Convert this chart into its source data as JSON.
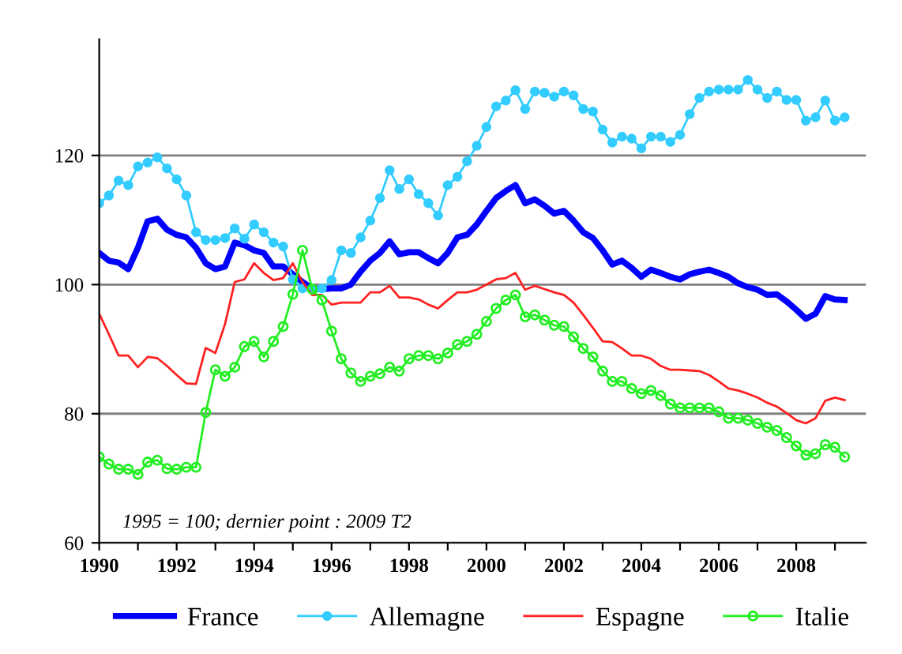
{
  "chart_data": {
    "type": "line",
    "annotations": [
      "1995 = 100; dernier point : 2009 T2"
    ],
    "x": [
      1990,
      1990.25,
      1990.5,
      1990.75,
      1991,
      1991.25,
      1991.5,
      1991.75,
      1992,
      1992.25,
      1992.5,
      1992.75,
      1993,
      1993.25,
      1993.5,
      1993.75,
      1994,
      1994.25,
      1994.5,
      1994.75,
      1995,
      1995.25,
      1995.5,
      1995.75,
      1996,
      1996.25,
      1996.5,
      1996.75,
      1997,
      1997.25,
      1997.5,
      1997.75,
      1998,
      1998.25,
      1998.5,
      1998.75,
      1999,
      1999.25,
      1999.5,
      1999.75,
      2000,
      2000.25,
      2000.5,
      2000.75,
      2001,
      2001.25,
      2001.5,
      2001.75,
      2002,
      2002.25,
      2002.5,
      2002.75,
      2003,
      2003.25,
      2003.5,
      2003.75,
      2004,
      2004.25,
      2004.5,
      2004.75,
      2005,
      2005.25,
      2005.5,
      2005.75,
      2006,
      2006.25,
      2006.5,
      2006.75,
      2007,
      2007.25,
      2007.5,
      2007.75,
      2008,
      2008.25,
      2008.5,
      2008.75,
      2009,
      2009.25
    ],
    "series": [
      {
        "name": "France",
        "color": "#0000ff",
        "marker": "none",
        "values": [
          104.9,
          103.7,
          103.4,
          102.4,
          105.7,
          109.8,
          110.2,
          108.5,
          107.7,
          107.3,
          105.7,
          103.3,
          102.4,
          102.8,
          106.5,
          106.1,
          105.3,
          104.9,
          102.8,
          102.8,
          101.6,
          100.4,
          99.4,
          99.3,
          99.4,
          99.4,
          100,
          102,
          103.7,
          104.9,
          106.7,
          104.7,
          105,
          105,
          104.1,
          103.3,
          104.9,
          107.3,
          107.7,
          109.3,
          111.4,
          113.4,
          114.5,
          115.4,
          112.6,
          113.2,
          112.2,
          111.0,
          111.4,
          109.9,
          108.1,
          107.2,
          105.3,
          103.1,
          103.7,
          102.6,
          101.2,
          102.3,
          101.8,
          101.2,
          100.8,
          101.6,
          102.0,
          102.3,
          101.8,
          101.2,
          100.2,
          99.6,
          99.2,
          98.4,
          98.5,
          97.4,
          96.1,
          94.7,
          95.5,
          98.2,
          97.7,
          97.6
        ]
      },
      {
        "name": "Allemagne",
        "color": "#33ccff",
        "marker": "circle",
        "values": [
          112.6,
          113.8,
          116.1,
          115.4,
          118.3,
          118.9,
          119.7,
          118.0,
          116.3,
          113.8,
          108.1,
          106.9,
          106.9,
          107.2,
          108.7,
          107.1,
          109.3,
          108.1,
          106.5,
          105.9,
          100.8,
          99.4,
          99.4,
          99.4,
          100.7,
          105.3,
          104.9,
          107.3,
          109.9,
          113.4,
          117.7,
          114.8,
          116.3,
          114.0,
          112.6,
          110.7,
          115.4,
          116.7,
          119.1,
          121.5,
          124.4,
          127.6,
          128.5,
          130.1,
          127.2,
          129.9,
          129.7,
          129.1,
          129.9,
          129.3,
          127.2,
          126.8,
          124.0,
          122.0,
          122.9,
          122.6,
          121.1,
          122.9,
          122.9,
          122.1,
          123.2,
          126.4,
          128.9,
          129.9,
          130.2,
          130.2,
          130.2,
          131.7,
          130.2,
          128.9,
          129.9,
          128.6,
          128.6,
          125.4,
          125.9,
          128.5,
          125.4,
          125.9
        ]
      },
      {
        "name": "Espagne",
        "color": "#ff2020",
        "marker": "none",
        "values": [
          95.5,
          92.3,
          89.0,
          89.0,
          87.2,
          88.8,
          88.6,
          87.4,
          86.0,
          84.7,
          84.6,
          90.2,
          89.4,
          93.9,
          100.4,
          100.8,
          103.3,
          101.8,
          100.7,
          101.0,
          103.3,
          100.4,
          98.4,
          98.4,
          96.9,
          97.2,
          97.2,
          97.2,
          98.8,
          98.8,
          99.8,
          98.0,
          98.0,
          97.7,
          96.9,
          96.3,
          97.6,
          98.8,
          98.8,
          99.2,
          100,
          100.8,
          101.0,
          101.8,
          99.2,
          99.8,
          99.3,
          98.8,
          98.4,
          97.2,
          95.3,
          93.3,
          91.2,
          91.1,
          90.1,
          89.0,
          89.0,
          88.5,
          87.4,
          86.8,
          86.8,
          86.7,
          86.6,
          86.0,
          85.0,
          83.9,
          83.6,
          83.1,
          82.5,
          81.7,
          81.1,
          80.1,
          79.0,
          78.5,
          79.3,
          82.0,
          82.5,
          82.1
        ]
      },
      {
        "name": "Italie",
        "color": "#22ee22",
        "marker": "circle",
        "values": [
          73.3,
          72.2,
          71.4,
          71.4,
          70.6,
          72.5,
          72.8,
          71.5,
          71.4,
          71.7,
          71.7,
          80.2,
          86.8,
          85.8,
          87.2,
          90.4,
          91.2,
          88.8,
          91.2,
          93.5,
          98.5,
          105.3,
          99.3,
          97.6,
          92.8,
          88.5,
          86.3,
          85.0,
          85.8,
          86.2,
          87.2,
          86.6,
          88.5,
          89.0,
          89.0,
          88.5,
          89.4,
          90.7,
          91.2,
          92.3,
          94.3,
          96.3,
          97.6,
          98.4,
          95.0,
          95.3,
          94.5,
          93.7,
          93.5,
          91.9,
          90.1,
          88.8,
          86.6,
          85.0,
          85.0,
          83.9,
          83.1,
          83.6,
          82.8,
          81.5,
          80.9,
          80.9,
          80.9,
          80.9,
          80.3,
          79.3,
          79.3,
          79.0,
          78.5,
          77.9,
          77.4,
          76.3,
          75.0,
          73.6,
          73.8,
          75.2,
          74.8,
          73.3
        ]
      }
    ],
    "xlim": [
      1990,
      2009.8
    ],
    "xticks": [
      1990,
      {
        "value": 1991,
        "label": null
      },
      1992,
      {
        "value": 1993,
        "label": null
      },
      1994,
      {
        "value": 1995,
        "label": null
      },
      1996,
      {
        "value": 1997,
        "label": null
      },
      1998,
      {
        "value": 1999,
        "label": null
      },
      2000,
      {
        "value": 2001,
        "label": null
      },
      2002,
      {
        "value": 2003,
        "label": null
      },
      2004,
      {
        "value": 2005,
        "label": null
      },
      2006,
      {
        "value": 2007,
        "label": null
      },
      2008,
      {
        "value": 2009,
        "label": null
      }
    ],
    "ylim": [
      60,
      138
    ],
    "yticks": [
      60,
      80,
      100,
      120
    ],
    "grid": "y",
    "legend": "bottom"
  }
}
